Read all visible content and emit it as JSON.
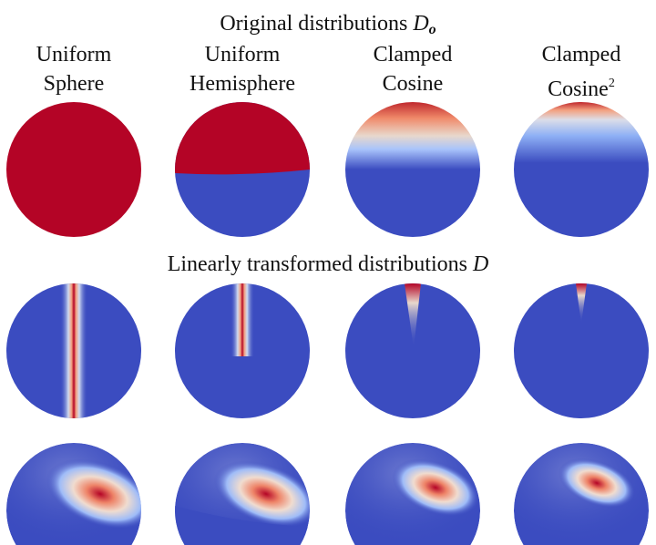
{
  "figure": {
    "top_title": {
      "text": "Original distributions",
      "symbol": "D",
      "subscript": "o"
    },
    "middle_title": {
      "text": "Linearly transformed distributions",
      "symbol": "D"
    },
    "columns": [
      {
        "line1": "Uniform",
        "line2": "Sphere",
        "sup": ""
      },
      {
        "line1": "Uniform",
        "line2": "Hemisphere",
        "sup": ""
      },
      {
        "line1": "Clamped",
        "line2": "Cosine",
        "sup": ""
      },
      {
        "line1": "Clamped",
        "line2": "Cosine",
        "sup": "2"
      }
    ],
    "colors": {
      "high": "#b40426",
      "mid": "#dddddd",
      "low": "#3b4cc0"
    }
  }
}
